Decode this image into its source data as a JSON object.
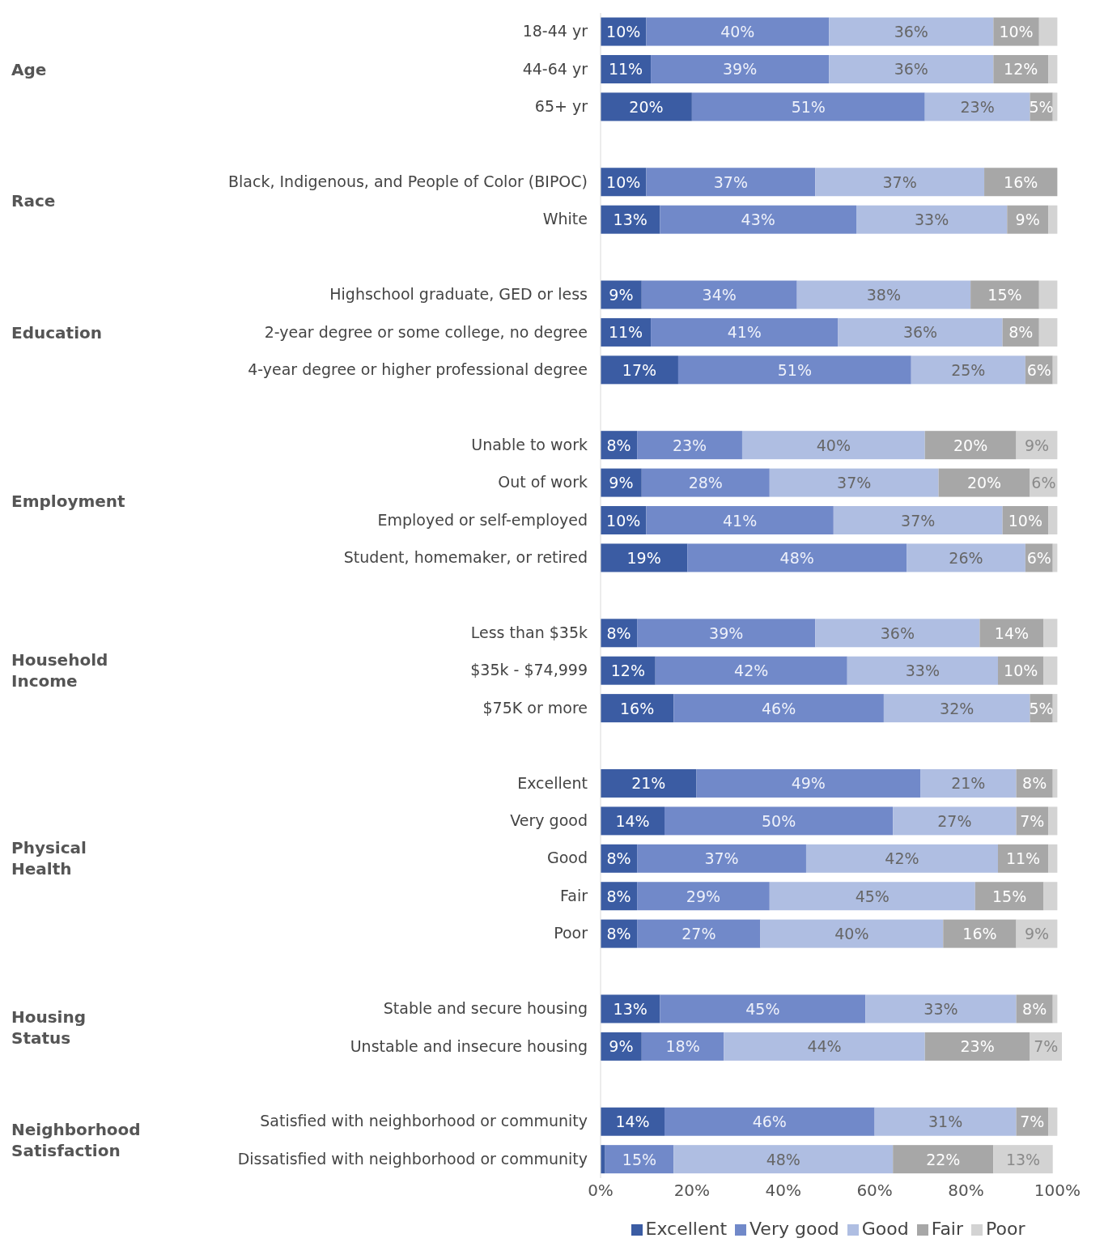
{
  "chart_data": {
    "type": "bar",
    "orientation": "horizontal",
    "stacked": true,
    "categories": [
      "18-44 yr",
      "44-64 yr",
      "65+ yr",
      null,
      "Black, Indigenous, and People of Color (BIPOC)",
      "White",
      null,
      "Highschool graduate, GED or less",
      "2-year degree or some college, no degree",
      "4-year degree or higher professional degree",
      null,
      "Unable to work",
      "Out of work",
      "Employed or self-employed",
      "Student, homemaker, or retired",
      null,
      "Less than $35k",
      "$35k - $74,999",
      "$75K or more",
      null,
      "Excellent",
      "Very good",
      "Good",
      "Fair",
      "Poor",
      null,
      "Stable and secure housing",
      "Unstable and insecure housing",
      null,
      "Satisfied with neighborhood or community",
      "Dissatisfied with neighborhood or community"
    ],
    "annotations": [
      "Age",
      "Race",
      "Education",
      "Employment",
      "Household Income",
      "Physical Health",
      "Housing Status",
      "Neighborhood Satisfaction"
    ],
    "series": [
      {
        "name": "Excellent",
        "color": "#3b5ca3",
        "values": [
          10,
          11,
          20,
          null,
          10,
          13,
          null,
          9,
          11,
          17,
          null,
          8,
          9,
          10,
          19,
          null,
          8,
          12,
          16,
          null,
          21,
          14,
          8,
          8,
          8,
          null,
          13,
          9,
          null,
          14,
          1
        ],
        "value_labels": [
          "10%",
          "11%",
          "20%",
          null,
          "10%",
          "13%",
          null,
          "9%",
          "11%",
          "17%",
          null,
          "8%",
          "9%",
          "10%",
          "19%",
          null,
          "8%",
          "12%",
          "16%",
          null,
          "21%",
          "14%",
          "8%",
          "8%",
          "8%",
          null,
          "13%",
          "9%",
          null,
          "14%",
          null
        ]
      },
      {
        "name": "Very good",
        "color": "#7189c9",
        "values": [
          40,
          39,
          51,
          null,
          37,
          43,
          null,
          34,
          41,
          51,
          null,
          23,
          28,
          41,
          48,
          null,
          39,
          42,
          46,
          null,
          49,
          50,
          37,
          29,
          27,
          null,
          45,
          18,
          null,
          46,
          15
        ],
        "value_labels": [
          "40%",
          "39%",
          "51%",
          null,
          "37%",
          "43%",
          null,
          "34%",
          "41%",
          "51%",
          null,
          "23%",
          "28%",
          "41%",
          "48%",
          null,
          "39%",
          "42%",
          "46%",
          null,
          "49%",
          "50%",
          "37%",
          "29%",
          "27%",
          null,
          "45%",
          "18%",
          null,
          "46%",
          "15%"
        ]
      },
      {
        "name": "Good",
        "color": "#afbee2",
        "values": [
          36,
          36,
          23,
          null,
          37,
          33,
          null,
          38,
          36,
          25,
          null,
          40,
          37,
          37,
          26,
          null,
          36,
          33,
          32,
          null,
          21,
          27,
          42,
          45,
          40,
          null,
          33,
          44,
          null,
          31,
          48
        ],
        "value_labels": [
          "36%",
          "36%",
          "23%",
          null,
          "37%",
          "33%",
          null,
          "38%",
          "36%",
          "25%",
          null,
          "40%",
          "37%",
          "37%",
          "26%",
          null,
          "36%",
          "33%",
          "32%",
          null,
          "21%",
          "27%",
          "42%",
          "45%",
          "40%",
          null,
          "33%",
          "44%",
          null,
          "31%",
          "48%"
        ]
      },
      {
        "name": "Fair",
        "color": "#a7a7a7",
        "values": [
          10,
          12,
          5,
          null,
          16,
          9,
          null,
          15,
          8,
          6,
          null,
          20,
          20,
          10,
          6,
          null,
          14,
          10,
          5,
          null,
          8,
          7,
          11,
          15,
          16,
          null,
          8,
          23,
          null,
          7,
          22
        ],
        "value_labels": [
          "10%",
          "12%",
          "5%",
          null,
          "16%",
          "9%",
          null,
          "15%",
          "8%",
          "6%",
          null,
          "20%",
          "20%",
          "10%",
          "6%",
          null,
          "14%",
          "10%",
          "5%",
          null,
          "8%",
          "7%",
          "11%",
          "15%",
          "16%",
          null,
          "8%",
          "23%",
          null,
          "7%",
          "22%"
        ]
      },
      {
        "name": "Poor",
        "color": "#d3d3d3",
        "values": [
          4,
          2,
          1,
          null,
          0,
          2,
          null,
          4,
          4,
          1,
          null,
          9,
          6,
          2,
          1,
          null,
          3,
          3,
          1,
          null,
          1,
          2,
          2,
          3,
          9,
          null,
          1,
          7,
          null,
          2,
          13
        ],
        "value_labels": [
          null,
          null,
          null,
          null,
          null,
          null,
          null,
          null,
          null,
          null,
          null,
          "9%",
          "6%",
          null,
          null,
          null,
          null,
          null,
          null,
          null,
          null,
          null,
          null,
          null,
          "9%",
          null,
          null,
          "7%",
          null,
          null,
          "13%"
        ]
      }
    ],
    "xlim": [
      0,
      101
    ],
    "xticks": [
      {
        "value": 0,
        "label": "0%"
      },
      {
        "value": 20,
        "label": "20%"
      },
      {
        "value": 40,
        "label": "40%"
      },
      {
        "value": 60,
        "label": "60%"
      },
      {
        "value": 80,
        "label": "80%"
      },
      {
        "value": 100,
        "label": "100%"
      }
    ],
    "legend": "bottom"
  }
}
